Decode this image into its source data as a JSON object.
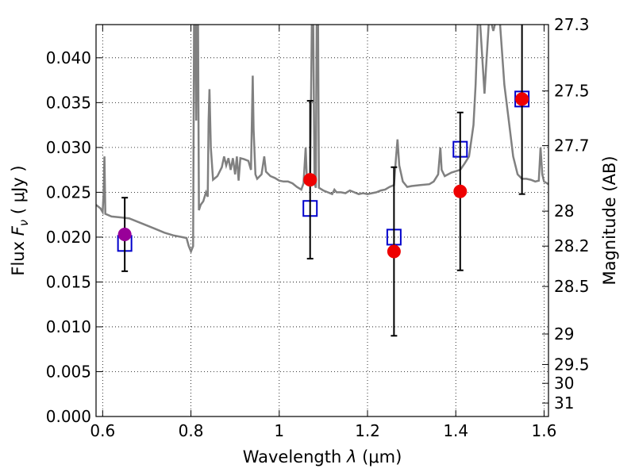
{
  "chart_data": {
    "type": "scatter",
    "xlabel": "Wavelength  λ (μm)",
    "ylabel_left": "Flux  F_ν  ( μJy )",
    "ylabel_right": "Magnitude (AB)",
    "xlim": [
      0.585,
      1.61
    ],
    "ylim": [
      0.0,
      0.0437
    ],
    "grid": true,
    "x_ticks": [
      {
        "value": 0.6,
        "label": "0.6"
      },
      {
        "value": 0.8,
        "label": "0.8"
      },
      {
        "value": 1.0,
        "label": "1"
      },
      {
        "value": 1.2,
        "label": "1.2"
      },
      {
        "value": 1.4,
        "label": "1.4"
      },
      {
        "value": 1.6,
        "label": "1.6"
      }
    ],
    "y_ticks_left": [
      {
        "value": 0.0,
        "label": "0.000"
      },
      {
        "value": 0.005,
        "label": "0.005"
      },
      {
        "value": 0.01,
        "label": "0.010"
      },
      {
        "value": 0.015,
        "label": "0.015"
      },
      {
        "value": 0.02,
        "label": "0.020"
      },
      {
        "value": 0.025,
        "label": "0.025"
      },
      {
        "value": 0.03,
        "label": "0.030"
      },
      {
        "value": 0.035,
        "label": "0.035"
      },
      {
        "value": 0.04,
        "label": "0.040"
      }
    ],
    "y_ticks_right": [
      {
        "flux": 0.0437,
        "label": "27.3"
      },
      {
        "flux": 0.0363,
        "label": "27.5"
      },
      {
        "flux": 0.0302,
        "label": "27.7"
      },
      {
        "flux": 0.0229,
        "label": "28"
      },
      {
        "flux": 0.019,
        "label": "28.2"
      },
      {
        "flux": 0.0145,
        "label": "28.5"
      },
      {
        "flux": 0.0092,
        "label": "29"
      },
      {
        "flux": 0.0058,
        "label": "29.5"
      },
      {
        "flux": 0.0037,
        "label": "30"
      },
      {
        "flux": 0.0015,
        "label": "31"
      }
    ],
    "model_spectrum": {
      "color": "#808080",
      "points": [
        [
          0.585,
          0.0236
        ],
        [
          0.595,
          0.0232
        ],
        [
          0.6,
          0.0228
        ],
        [
          0.602,
          0.0248
        ],
        [
          0.604,
          0.029
        ],
        [
          0.606,
          0.0226
        ],
        [
          0.62,
          0.0223
        ],
        [
          0.64,
          0.0222
        ],
        [
          0.66,
          0.0221
        ],
        [
          0.68,
          0.0217
        ],
        [
          0.7,
          0.0213
        ],
        [
          0.72,
          0.0209
        ],
        [
          0.74,
          0.0205
        ],
        [
          0.76,
          0.0202
        ],
        [
          0.78,
          0.02
        ],
        [
          0.79,
          0.0199
        ],
        [
          0.795,
          0.019
        ],
        [
          0.8,
          0.0184
        ],
        [
          0.805,
          0.019
        ],
        [
          0.807,
          0.044
        ],
        [
          0.81,
          0.044
        ],
        [
          0.812,
          0.033
        ],
        [
          0.814,
          0.044
        ],
        [
          0.816,
          0.044
        ],
        [
          0.818,
          0.023
        ],
        [
          0.822,
          0.0236
        ],
        [
          0.828,
          0.024
        ],
        [
          0.834,
          0.025
        ],
        [
          0.838,
          0.0245
        ],
        [
          0.84,
          0.033
        ],
        [
          0.842,
          0.0365
        ],
        [
          0.845,
          0.03
        ],
        [
          0.85,
          0.0264
        ],
        [
          0.86,
          0.0268
        ],
        [
          0.87,
          0.0278
        ],
        [
          0.875,
          0.029
        ],
        [
          0.88,
          0.028
        ],
        [
          0.885,
          0.0288
        ],
        [
          0.89,
          0.0275
        ],
        [
          0.895,
          0.0288
        ],
        [
          0.9,
          0.027
        ],
        [
          0.904,
          0.029
        ],
        [
          0.908,
          0.0263
        ],
        [
          0.912,
          0.0288
        ],
        [
          0.92,
          0.0287
        ],
        [
          0.93,
          0.0285
        ],
        [
          0.936,
          0.0275
        ],
        [
          0.94,
          0.038
        ],
        [
          0.942,
          0.032
        ],
        [
          0.946,
          0.027
        ],
        [
          0.95,
          0.0265
        ],
        [
          0.96,
          0.027
        ],
        [
          0.966,
          0.029
        ],
        [
          0.97,
          0.0273
        ],
        [
          0.98,
          0.0268
        ],
        [
          0.99,
          0.0266
        ],
        [
          1.0,
          0.0263
        ],
        [
          1.01,
          0.0262
        ],
        [
          1.02,
          0.0262
        ],
        [
          1.03,
          0.026
        ],
        [
          1.04,
          0.0256
        ],
        [
          1.05,
          0.0253
        ],
        [
          1.055,
          0.026
        ],
        [
          1.06,
          0.03
        ],
        [
          1.063,
          0.026
        ],
        [
          1.07,
          0.0262
        ],
        [
          1.074,
          0.044
        ],
        [
          1.077,
          0.044
        ],
        [
          1.08,
          0.026
        ],
        [
          1.083,
          0.0255
        ],
        [
          1.085,
          0.044
        ],
        [
          1.088,
          0.044
        ],
        [
          1.09,
          0.0255
        ],
        [
          1.1,
          0.0252
        ],
        [
          1.11,
          0.025
        ],
        [
          1.12,
          0.0248
        ],
        [
          1.125,
          0.0253
        ],
        [
          1.13,
          0.025
        ],
        [
          1.14,
          0.025
        ],
        [
          1.15,
          0.0249
        ],
        [
          1.16,
          0.0252
        ],
        [
          1.17,
          0.025
        ],
        [
          1.18,
          0.0248
        ],
        [
          1.19,
          0.0249
        ],
        [
          1.2,
          0.0248
        ],
        [
          1.21,
          0.0249
        ],
        [
          1.22,
          0.025
        ],
        [
          1.23,
          0.0252
        ],
        [
          1.24,
          0.0253
        ],
        [
          1.25,
          0.0256
        ],
        [
          1.26,
          0.0258
        ],
        [
          1.264,
          0.0285
        ],
        [
          1.268,
          0.0309
        ],
        [
          1.272,
          0.028
        ],
        [
          1.28,
          0.0262
        ],
        [
          1.29,
          0.0256
        ],
        [
          1.3,
          0.0257
        ],
        [
          1.32,
          0.0258
        ],
        [
          1.34,
          0.0259
        ],
        [
          1.35,
          0.0262
        ],
        [
          1.36,
          0.027
        ],
        [
          1.365,
          0.03
        ],
        [
          1.368,
          0.0275
        ],
        [
          1.375,
          0.0268
        ],
        [
          1.39,
          0.0272
        ],
        [
          1.41,
          0.0275
        ],
        [
          1.42,
          0.0282
        ],
        [
          1.43,
          0.029
        ],
        [
          1.44,
          0.0325
        ],
        [
          1.445,
          0.037
        ],
        [
          1.45,
          0.044
        ],
        [
          1.455,
          0.044
        ],
        [
          1.46,
          0.04
        ],
        [
          1.465,
          0.036
        ],
        [
          1.47,
          0.04
        ],
        [
          1.475,
          0.044
        ],
        [
          1.48,
          0.044
        ],
        [
          1.485,
          0.043
        ],
        [
          1.49,
          0.044
        ],
        [
          1.5,
          0.044
        ],
        [
          1.51,
          0.037
        ],
        [
          1.52,
          0.033
        ],
        [
          1.53,
          0.029
        ],
        [
          1.54,
          0.027
        ],
        [
          1.55,
          0.0265
        ],
        [
          1.56,
          0.0265
        ],
        [
          1.57,
          0.0264
        ],
        [
          1.58,
          0.0262
        ],
        [
          1.588,
          0.0263
        ],
        [
          1.592,
          0.03
        ],
        [
          1.596,
          0.027
        ],
        [
          1.6,
          0.0262
        ],
        [
          1.61,
          0.0259
        ]
      ]
    },
    "model_photometry": {
      "marker": "open-square",
      "color": "#0000cc",
      "points": [
        [
          0.65,
          0.0193
        ],
        [
          1.07,
          0.0232
        ],
        [
          1.26,
          0.02
        ],
        [
          1.41,
          0.0298
        ],
        [
          1.55,
          0.0354
        ]
      ]
    },
    "observed": {
      "points": [
        {
          "x": 0.65,
          "y": 0.0203,
          "yerr": 0.0041,
          "color": "#990099"
        },
        {
          "x": 1.07,
          "y": 0.0264,
          "yerr": 0.0088,
          "color": "#ee0000"
        },
        {
          "x": 1.26,
          "y": 0.0184,
          "yerr": 0.0094,
          "color": "#ee0000"
        },
        {
          "x": 1.41,
          "y": 0.0251,
          "yerr": 0.0088,
          "color": "#ee0000"
        },
        {
          "x": 1.55,
          "y": 0.0354,
          "yerr": 0.0106,
          "color": "#ee0000"
        }
      ]
    }
  }
}
